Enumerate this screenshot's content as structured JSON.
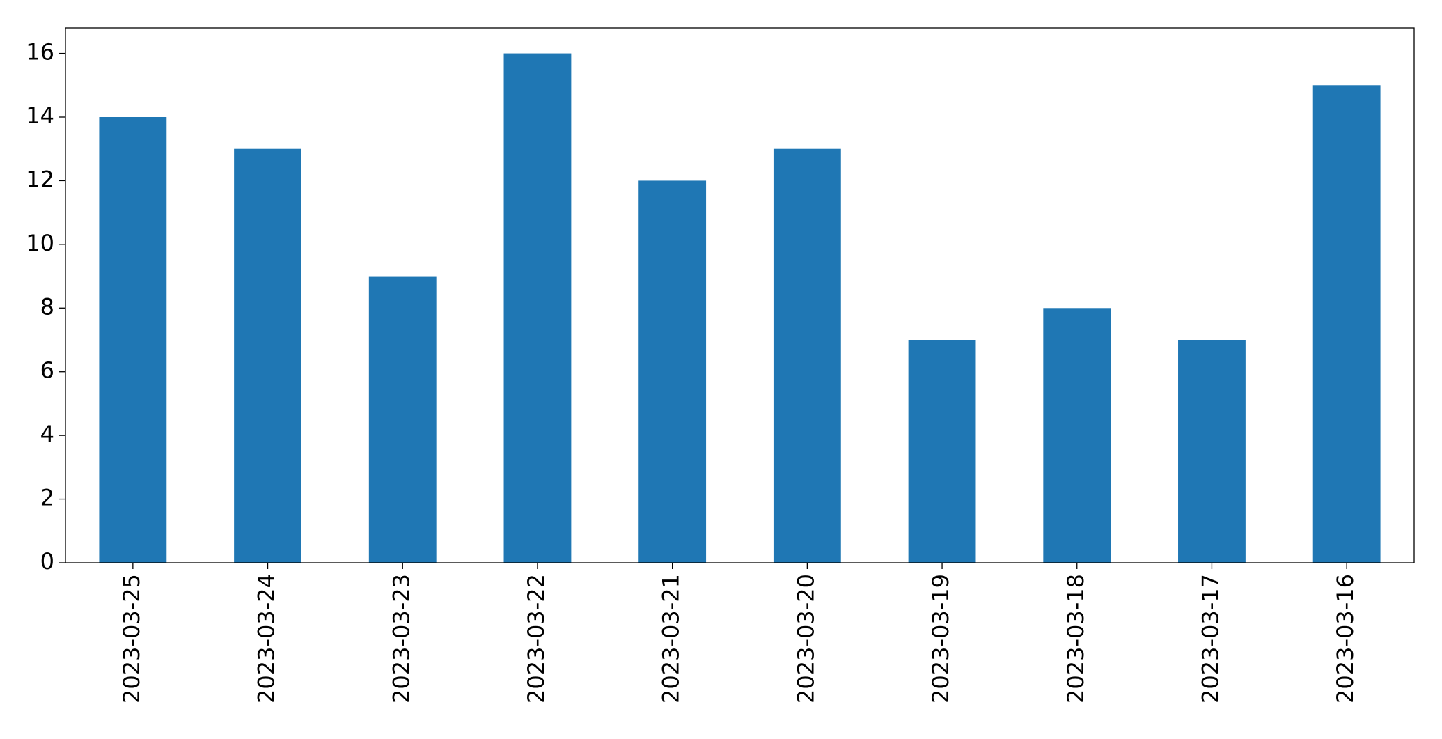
{
  "chart_data": {
    "type": "bar",
    "categories": [
      "2023-03-25",
      "2023-03-24",
      "2023-03-23",
      "2023-03-22",
      "2023-03-21",
      "2023-03-20",
      "2023-03-19",
      "2023-03-18",
      "2023-03-17",
      "2023-03-16"
    ],
    "values": [
      14,
      13,
      9,
      16,
      12,
      13,
      7,
      8,
      7,
      15
    ],
    "color": "#1f77b4",
    "ylim": [
      0,
      16.8
    ],
    "yticks": [
      0,
      2,
      4,
      6,
      8,
      10,
      12,
      14,
      16
    ],
    "grid": false
  }
}
